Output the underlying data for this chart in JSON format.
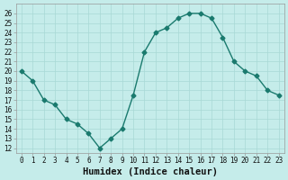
{
  "x": [
    0,
    1,
    2,
    3,
    4,
    5,
    6,
    7,
    8,
    9,
    10,
    11,
    12,
    13,
    14,
    15,
    16,
    17,
    18,
    19,
    20,
    21,
    22,
    23
  ],
  "y": [
    20.0,
    19.0,
    17.0,
    16.5,
    15.0,
    14.5,
    13.5,
    12.0,
    13.0,
    14.0,
    17.5,
    22.0,
    24.0,
    24.5,
    25.5,
    26.0,
    26.0,
    25.5,
    23.5,
    21.0,
    20.0,
    19.5,
    18.0,
    17.5
  ],
  "line_color": "#1a7a6e",
  "marker": "D",
  "marker_size": 2.5,
  "bg_color": "#c5ecea",
  "grid_color": "#a8d8d5",
  "xlabel": "Humidex (Indice chaleur)",
  "yticks": [
    12,
    13,
    14,
    15,
    16,
    17,
    18,
    19,
    20,
    21,
    22,
    23,
    24,
    25,
    26
  ],
  "ylim": [
    11.5,
    27.0
  ],
  "xlim": [
    -0.5,
    23.5
  ],
  "xticks": [
    0,
    1,
    2,
    3,
    4,
    5,
    6,
    7,
    8,
    9,
    10,
    11,
    12,
    13,
    14,
    15,
    16,
    17,
    18,
    19,
    20,
    21,
    22,
    23
  ],
  "xtick_labels": [
    "0",
    "1",
    "2",
    "3",
    "4",
    "5",
    "6",
    "7",
    "8",
    "9",
    "10",
    "11",
    "12",
    "13",
    "14",
    "15",
    "16",
    "17",
    "18",
    "19",
    "20",
    "21",
    "22",
    "23"
  ],
  "xlabel_fontsize": 7.5,
  "tick_fontsize": 5.5,
  "linewidth": 1.0
}
